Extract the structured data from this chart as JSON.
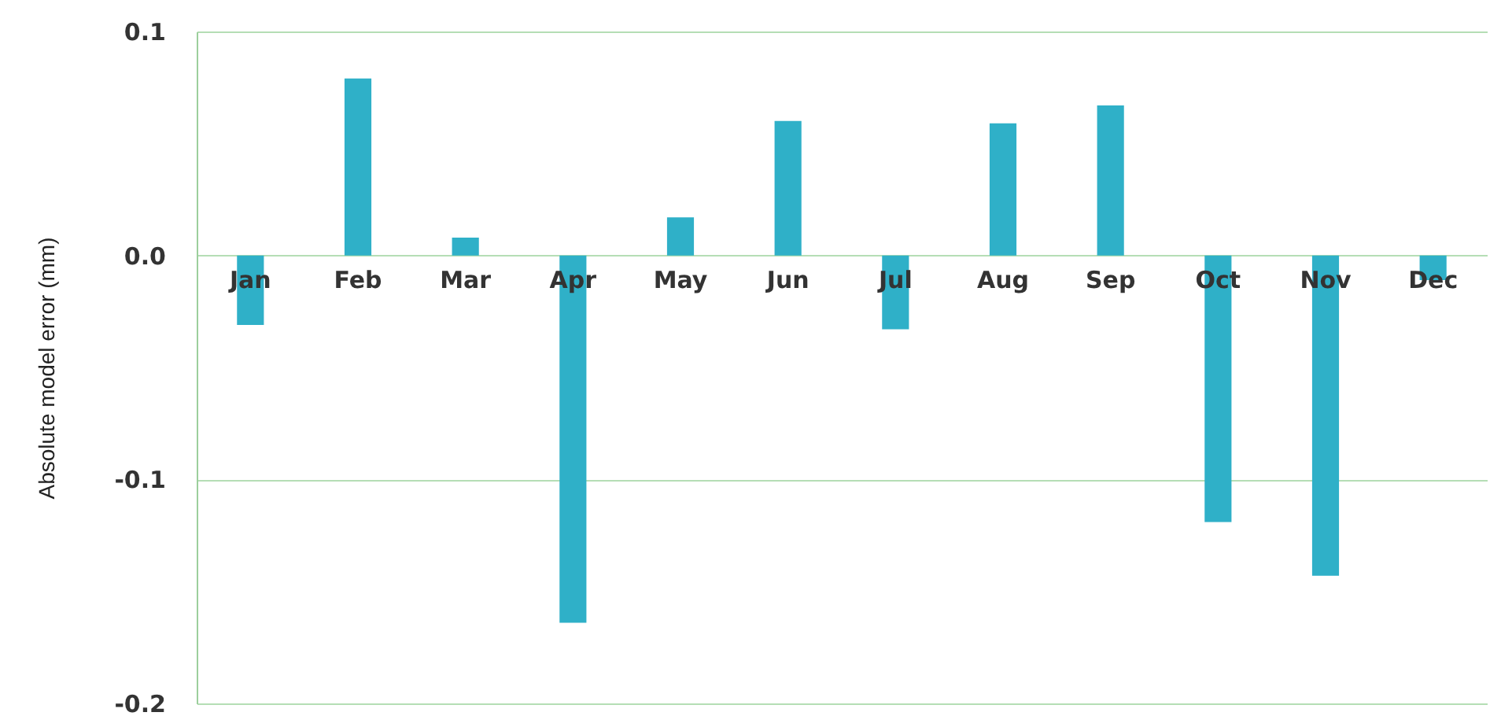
{
  "chart_data": {
    "type": "bar",
    "ylabel": "Absolute model error (mm)",
    "categories": [
      "Jan",
      "Feb",
      "Mar",
      "Apr",
      "May",
      "Jun",
      "Jul",
      "Aug",
      "Sep",
      "Oct",
      "Nov",
      "Dec"
    ],
    "values": [
      -0.031,
      0.079,
      0.008,
      -0.164,
      0.017,
      0.06,
      -0.033,
      0.059,
      0.067,
      -0.119,
      -0.143,
      -0.011
    ],
    "color": "#2fb0c8",
    "ylim": [
      -0.2,
      0.1
    ],
    "yticks": [
      {
        "value": -0.2,
        "label": "-0.2"
      },
      {
        "value": -0.1,
        "label": "-0.1"
      },
      {
        "value": 0,
        "label": "0.0"
      },
      {
        "value": 0.1,
        "label": "0.1"
      }
    ],
    "grid": "y"
  }
}
